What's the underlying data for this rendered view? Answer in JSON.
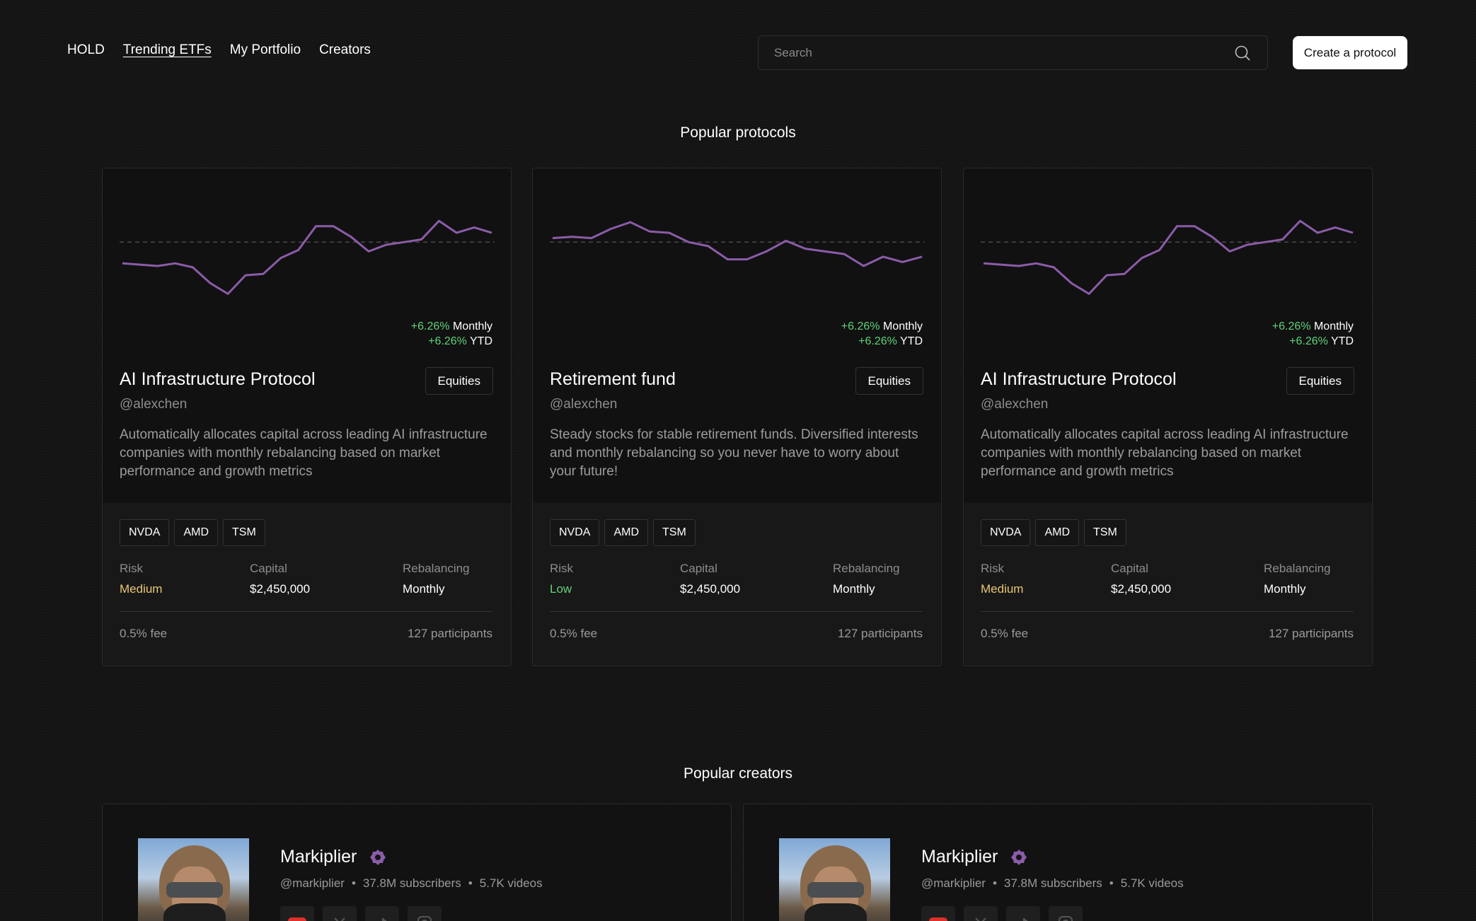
{
  "nav": {
    "items": [
      {
        "label": "HOLD",
        "active": false
      },
      {
        "label": "Trending ETFs",
        "active": true
      },
      {
        "label": "My Portfolio",
        "active": false
      },
      {
        "label": "Creators",
        "active": false
      }
    ]
  },
  "search": {
    "placeholder": "Search",
    "icon": "search-icon"
  },
  "header": {
    "create_label": "Create a protocol"
  },
  "sections": {
    "protocols_title": "Popular protocols",
    "creators_title": "Popular creators"
  },
  "colors": {
    "accent_line": "#8b5ca8",
    "positive": "#5fd27a",
    "risk_medium": "#e8c774",
    "risk_low": "#5fd27a"
  },
  "protocols": [
    {
      "title": "AI Infrastructure Protocol",
      "category": "Equities",
      "handle": "@alexchen",
      "description": "Automatically allocates capital across leading AI infrastructure companies with monthly rebalancing based on market performance and growth metrics",
      "monthly_change": "+6.26%",
      "monthly_label": "Monthly",
      "ytd_change": "+6.26%",
      "ytd_label": "YTD",
      "tickers": [
        "NVDA",
        "AMD",
        "TSM"
      ],
      "risk_label": "Risk",
      "risk": "Medium",
      "risk_level": "medium",
      "capital_label": "Capital",
      "capital": "$2,450,000",
      "rebalancing_label": "Rebalancing",
      "rebalancing": "Monthly",
      "fee": "0.5% fee",
      "participants": "127 participants",
      "chart_data": {
        "type": "line",
        "baseline": 50,
        "values": [
          34,
          33,
          32,
          34,
          31,
          19,
          11,
          25,
          26,
          38,
          44,
          62,
          62,
          54,
          43,
          48,
          50,
          52,
          66,
          57,
          61,
          57
        ]
      }
    },
    {
      "title": "Retirement fund",
      "category": "Equities",
      "handle": "@alexchen",
      "description": "Steady stocks for stable retirement funds. Diversified interests and monthly rebalancing so you never have to worry about your future!",
      "monthly_change": "+6.26%",
      "monthly_label": "Monthly",
      "ytd_change": "+6.26%",
      "ytd_label": "YTD",
      "tickers": [
        "NVDA",
        "AMD",
        "TSM"
      ],
      "risk_label": "Risk",
      "risk": "Low",
      "risk_level": "low",
      "capital_label": "Capital",
      "capital": "$2,450,000",
      "rebalancing_label": "Rebalancing",
      "rebalancing": "Monthly",
      "fee": "0.5% fee",
      "participants": "127 participants",
      "chart_data": {
        "type": "line",
        "baseline": 50,
        "values": [
          53,
          54,
          53,
          60,
          65,
          58,
          57,
          50,
          47,
          37,
          37,
          43,
          51,
          45,
          43,
          41,
          32,
          39,
          35,
          39
        ]
      }
    },
    {
      "title": "AI Infrastructure Protocol",
      "category": "Equities",
      "handle": "@alexchen",
      "description": "Automatically allocates capital across leading AI infrastructure companies with monthly rebalancing based on market performance and growth metrics",
      "monthly_change": "+6.26%",
      "monthly_label": "Monthly",
      "ytd_change": "+6.26%",
      "ytd_label": "YTD",
      "tickers": [
        "NVDA",
        "AMD",
        "TSM"
      ],
      "risk_label": "Risk",
      "risk": "Medium",
      "risk_level": "medium",
      "capital_label": "Capital",
      "capital": "$2,450,000",
      "rebalancing_label": "Rebalancing",
      "rebalancing": "Monthly",
      "fee": "0.5% fee",
      "participants": "127 participants",
      "chart_data": {
        "type": "line",
        "baseline": 50,
        "values": [
          34,
          33,
          32,
          34,
          31,
          19,
          11,
          25,
          26,
          38,
          44,
          62,
          62,
          54,
          43,
          48,
          50,
          52,
          66,
          57,
          61,
          57
        ]
      }
    }
  ],
  "creators": [
    {
      "name": "Markiplier",
      "verified_icon": "verified-badge-icon",
      "handle": "@markiplier",
      "subscribers": "37.8M subscribers",
      "videos": "5.7K videos",
      "socials": [
        "youtube-icon",
        "x-icon",
        "tiktok-icon",
        "instagram-icon"
      ]
    },
    {
      "name": "Markiplier",
      "verified_icon": "verified-badge-icon",
      "handle": "@markiplier",
      "subscribers": "37.8M subscribers",
      "videos": "5.7K videos",
      "socials": [
        "youtube-icon",
        "x-icon",
        "tiktok-icon",
        "instagram-icon"
      ]
    }
  ]
}
